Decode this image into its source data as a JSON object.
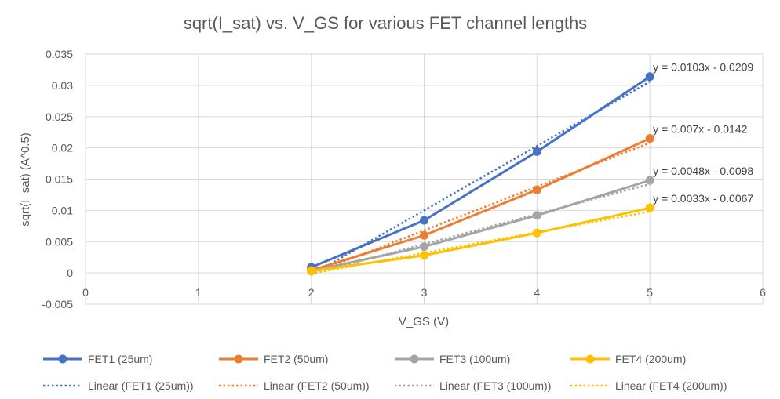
{
  "chart_data": {
    "type": "line",
    "title": "sqrt(I_sat) vs. V_GS for various FET channel lengths",
    "xlabel": "V_GS (V)",
    "ylabel": "sqrt(I_sat) (A^0.5)",
    "xlim": [
      0,
      6
    ],
    "ylim": [
      -0.005,
      0.035
    ],
    "x_ticks": [
      "0",
      "1",
      "2",
      "3",
      "4",
      "5",
      "6"
    ],
    "y_ticks": [
      "-0.005",
      "0",
      "0.005",
      "0.01",
      "0.015",
      "0.02",
      "0.025",
      "0.03",
      "0.035"
    ],
    "grid": true,
    "legend_position": "bottom",
    "series": [
      {
        "name": "FET1 (25um)",
        "color": "#4472C4",
        "x": [
          2,
          3,
          4,
          5
        ],
        "y": [
          0.0009,
          0.0084,
          0.0194,
          0.0314
        ],
        "trend_label": "Linear (FET1 (25um))",
        "equation": "y = 0.0103x - 0.0209",
        "slope": 0.0103,
        "intercept": -0.0209
      },
      {
        "name": "FET2 (50um)",
        "color": "#ED7D31",
        "x": [
          2,
          3,
          4,
          5
        ],
        "y": [
          0.0004,
          0.006,
          0.0133,
          0.0215
        ],
        "trend_label": "Linear (FET2 (50um))",
        "equation": "y = 0.007x - 0.0142",
        "slope": 0.007,
        "intercept": -0.0142
      },
      {
        "name": "FET3 (100um)",
        "color": "#A5A5A5",
        "x": [
          2,
          3,
          4,
          5
        ],
        "y": [
          0.0003,
          0.0042,
          0.0092,
          0.0148
        ],
        "trend_label": "Linear (FET3 (100um))",
        "equation": "y = 0.0048x - 0.0098",
        "slope": 0.0048,
        "intercept": -0.0098
      },
      {
        "name": "FET4 (200um)",
        "color": "#FFC000",
        "x": [
          2,
          3,
          4,
          5
        ],
        "y": [
          0.0003,
          0.0028,
          0.0064,
          0.0104
        ],
        "trend_label": "Linear (FET4 (200um))",
        "equation": "y = 0.0033x - 0.0067",
        "slope": 0.0033,
        "intercept": -0.0067
      }
    ]
  }
}
